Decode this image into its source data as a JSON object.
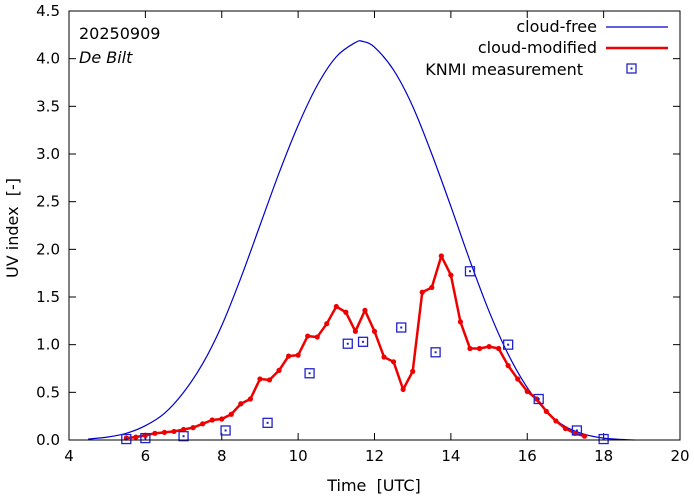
{
  "chart_data": {
    "type": "line",
    "title": "",
    "xlabel": "Time  [UTC]",
    "ylabel": "UV index  [-]",
    "xlim": [
      4,
      20
    ],
    "ylim": [
      0,
      4.5
    ],
    "xticks": [
      4,
      6,
      8,
      10,
      12,
      14,
      16,
      18,
      20
    ],
    "yticks": [
      0.0,
      0.5,
      1.0,
      1.5,
      2.0,
      2.5,
      3.0,
      3.5,
      4.0,
      4.5
    ],
    "xtick_labels": [
      "4",
      "6",
      "8",
      "10",
      "12",
      "14",
      "16",
      "18",
      "20"
    ],
    "ytick_labels": [
      "0.0",
      "0.5",
      "1.0",
      "1.5",
      "2.0",
      "2.5",
      "3.0",
      "3.5",
      "4.0",
      "4.5"
    ],
    "annotations": {
      "date": "20250909",
      "station": "De Bilt"
    },
    "legend_position": "top-right",
    "colors": {
      "cloud_free": "#0000cc",
      "cloud_modified": "#ee0000",
      "knmi": "#2222cc",
      "axis": "#000000"
    },
    "series": [
      {
        "name": "cloud-free",
        "style": "thin-line",
        "x": [
          4.5,
          5.0,
          5.5,
          6.0,
          6.5,
          7.0,
          7.5,
          8.0,
          8.5,
          9.0,
          9.5,
          10.0,
          10.5,
          11.0,
          11.5,
          11.7,
          12.0,
          12.5,
          13.0,
          13.5,
          14.0,
          14.5,
          15.0,
          15.5,
          16.0,
          16.5,
          17.0,
          17.5,
          18.0,
          18.5,
          18.8
        ],
        "y": [
          0.01,
          0.03,
          0.07,
          0.15,
          0.28,
          0.5,
          0.8,
          1.2,
          1.7,
          2.25,
          2.8,
          3.3,
          3.72,
          4.02,
          4.17,
          4.18,
          4.12,
          3.88,
          3.5,
          3.0,
          2.45,
          1.88,
          1.35,
          0.9,
          0.55,
          0.3,
          0.14,
          0.06,
          0.02,
          0.005,
          0.0
        ]
      },
      {
        "name": "cloud-modified",
        "style": "thick-line-dots",
        "x": [
          5.5,
          5.75,
          6.0,
          6.25,
          6.5,
          6.75,
          7.0,
          7.25,
          7.5,
          7.75,
          8.0,
          8.25,
          8.5,
          8.75,
          9.0,
          9.25,
          9.5,
          9.75,
          10.0,
          10.25,
          10.5,
          10.75,
          11.0,
          11.25,
          11.5,
          11.75,
          12.0,
          12.25,
          12.5,
          12.75,
          13.0,
          13.25,
          13.5,
          13.75,
          14.0,
          14.25,
          14.5,
          14.75,
          15.0,
          15.25,
          15.5,
          15.75,
          16.0,
          16.25,
          16.5,
          16.75,
          17.0,
          17.25,
          17.5
        ],
        "y": [
          0.02,
          0.03,
          0.05,
          0.07,
          0.08,
          0.09,
          0.11,
          0.13,
          0.17,
          0.21,
          0.22,
          0.27,
          0.38,
          0.43,
          0.64,
          0.63,
          0.73,
          0.88,
          0.89,
          1.09,
          1.08,
          1.22,
          1.4,
          1.34,
          1.14,
          1.36,
          1.14,
          0.87,
          0.82,
          0.53,
          0.72,
          1.55,
          1.6,
          1.93,
          1.73,
          1.24,
          0.96,
          0.96,
          0.98,
          0.96,
          0.78,
          0.64,
          0.51,
          0.43,
          0.3,
          0.2,
          0.12,
          0.07,
          0.04
        ]
      },
      {
        "name": "KNMI measurement",
        "style": "boxes",
        "x": [
          5.5,
          6.0,
          7.0,
          8.1,
          9.2,
          10.3,
          11.3,
          11.7,
          12.7,
          13.6,
          14.5,
          15.5,
          16.3,
          17.3,
          18.0
        ],
        "y": [
          0.01,
          0.02,
          0.04,
          0.1,
          0.18,
          0.7,
          1.01,
          1.03,
          1.18,
          0.92,
          1.77,
          1.0,
          0.43,
          0.1,
          0.01
        ]
      }
    ]
  }
}
